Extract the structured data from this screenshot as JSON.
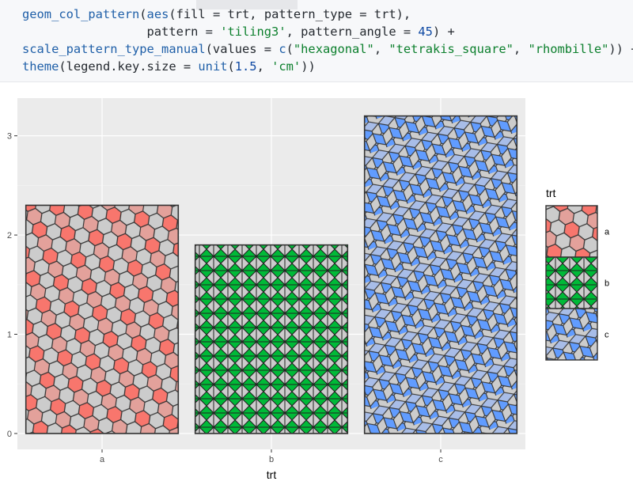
{
  "code": {
    "lines": [
      [
        {
          "t": "fn",
          "v": "geom_col_pattern"
        },
        {
          "t": "p",
          "v": "("
        },
        {
          "t": "fn",
          "v": "aes"
        },
        {
          "t": "p",
          "v": "(fill = trt, pattern_type = trt),"
        }
      ],
      [
        {
          "t": "p",
          "v": "                 pattern = "
        },
        {
          "t": "str",
          "v": "'tiling3'"
        },
        {
          "t": "p",
          "v": ", pattern_angle = "
        },
        {
          "t": "num",
          "v": "45"
        },
        {
          "t": "p",
          "v": ") +"
        }
      ],
      [
        {
          "t": "fn",
          "v": "scale_pattern_type_manual"
        },
        {
          "t": "p",
          "v": "(values = "
        },
        {
          "t": "fn",
          "v": "c"
        },
        {
          "t": "p",
          "v": "("
        },
        {
          "t": "str",
          "v": "\"hexagonal\""
        },
        {
          "t": "p",
          "v": ", "
        },
        {
          "t": "str",
          "v": "\"tetrakis_square\""
        },
        {
          "t": "p",
          "v": ", "
        },
        {
          "t": "str",
          "v": "\"rhombille\""
        },
        {
          "t": "p",
          "v": ")) +"
        }
      ],
      [
        {
          "t": "fn",
          "v": "theme"
        },
        {
          "t": "p",
          "v": "(legend.key.size = "
        },
        {
          "t": "fn",
          "v": "unit"
        },
        {
          "t": "p",
          "v": "("
        },
        {
          "t": "num",
          "v": "1.5"
        },
        {
          "t": "p",
          "v": ", "
        },
        {
          "t": "str",
          "v": "'cm'"
        },
        {
          "t": "p",
          "v": "))"
        }
      ]
    ]
  },
  "chart_data": {
    "type": "bar",
    "categories": [
      "a",
      "b",
      "c"
    ],
    "values": [
      2.3,
      1.9,
      3.2
    ],
    "xlabel": "trt",
    "ylabel": "",
    "ylim": [
      -0.16,
      3.38
    ],
    "yticks": [
      0,
      1,
      2,
      3
    ],
    "grid": true,
    "legend": {
      "title": "trt",
      "position": "right",
      "entries": [
        "a",
        "b",
        "c"
      ]
    },
    "series_fill": {
      "a": {
        "pattern": "hexagonal",
        "colors": [
          "#f8766d",
          "#e3a19b",
          "#cccccc"
        ]
      },
      "b": {
        "pattern": "tetrakis_square",
        "colors": [
          "#00ba38",
          "#cccccc"
        ]
      },
      "c": {
        "pattern": "rhombille",
        "colors": [
          "#619cff",
          "#a8bde8",
          "#cccccc"
        ]
      }
    }
  }
}
